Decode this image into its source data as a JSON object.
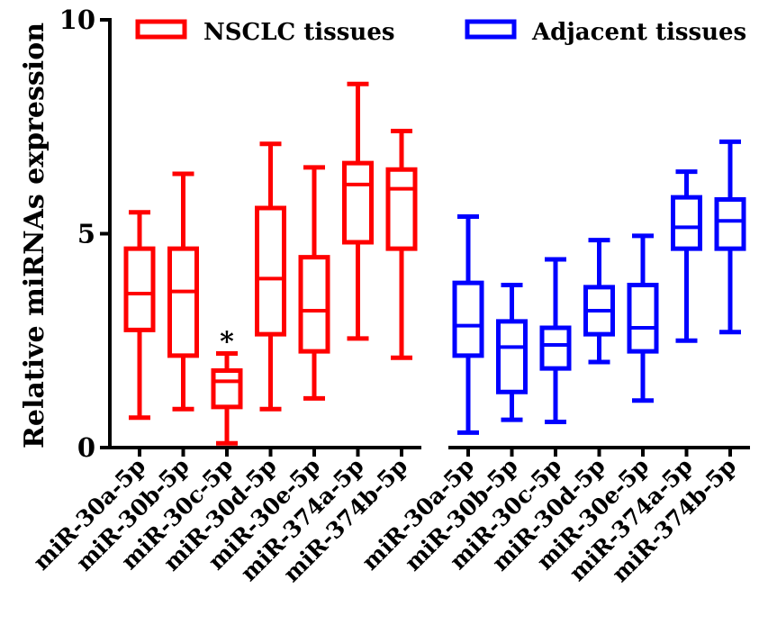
{
  "chart_data": {
    "type": "box",
    "title": "",
    "ylabel": "Relative miRNAs expression",
    "xlabel": "",
    "ylim": [
      0,
      10
    ],
    "yticks": [
      0,
      5,
      10
    ],
    "grid": false,
    "legend_position": "top",
    "series": [
      {
        "name": "NSCLC tissues",
        "color": "#ff0000",
        "categories": [
          "miR-30a-5p",
          "miR-30b-5p",
          "miR-30c-5p",
          "miR-30d-5p",
          "miR-30e-5p",
          "miR-374a-5p",
          "miR-374b-5p"
        ],
        "boxes": [
          {
            "min": 0.7,
            "q1": 2.75,
            "median": 3.6,
            "q3": 4.65,
            "max": 5.5
          },
          {
            "min": 0.9,
            "q1": 2.15,
            "median": 3.65,
            "q3": 4.65,
            "max": 6.4
          },
          {
            "min": 0.1,
            "q1": 0.95,
            "median": 1.55,
            "q3": 1.8,
            "max": 2.2
          },
          {
            "min": 0.9,
            "q1": 2.65,
            "median": 3.95,
            "q3": 5.6,
            "max": 7.1
          },
          {
            "min": 1.15,
            "q1": 2.25,
            "median": 3.2,
            "q3": 4.45,
            "max": 6.55
          },
          {
            "min": 2.55,
            "q1": 4.8,
            "median": 6.15,
            "q3": 6.65,
            "max": 8.5
          },
          {
            "min": 2.1,
            "q1": 4.65,
            "median": 6.05,
            "q3": 6.5,
            "max": 7.4
          }
        ]
      },
      {
        "name": "Adjacent tissues",
        "color": "#0000ff",
        "categories": [
          "miR-30a-5p",
          "miR-30b-5p",
          "miR-30c-5p",
          "miR-30d-5p",
          "miR-30e-5p",
          "miR-374a-5p",
          "miR-374b-5p"
        ],
        "boxes": [
          {
            "min": 0.35,
            "q1": 2.15,
            "median": 2.85,
            "q3": 3.85,
            "max": 5.4
          },
          {
            "min": 0.65,
            "q1": 1.3,
            "median": 2.35,
            "q3": 2.95,
            "max": 3.8
          },
          {
            "min": 0.6,
            "q1": 1.85,
            "median": 2.4,
            "q3": 2.8,
            "max": 4.4
          },
          {
            "min": 2.0,
            "q1": 2.65,
            "median": 3.2,
            "q3": 3.75,
            "max": 4.85
          },
          {
            "min": 1.1,
            "q1": 2.25,
            "median": 2.8,
            "q3": 3.8,
            "max": 4.95
          },
          {
            "min": 2.5,
            "q1": 4.65,
            "median": 5.15,
            "q3": 5.85,
            "max": 6.45
          },
          {
            "min": 2.7,
            "q1": 4.65,
            "median": 5.3,
            "q3": 5.8,
            "max": 7.15
          }
        ]
      }
    ],
    "annotations": [
      {
        "text": "*",
        "series": 0,
        "category": 2
      }
    ]
  }
}
